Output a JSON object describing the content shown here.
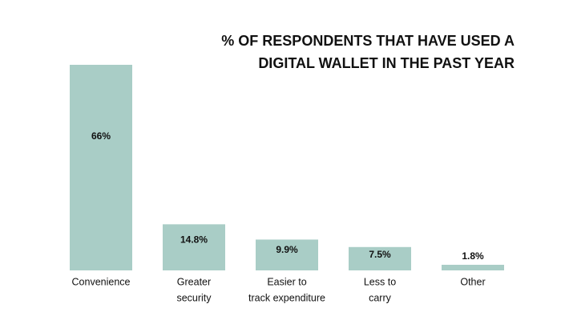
{
  "chart_data": {
    "type": "bar",
    "title": [
      "% OF RESPONDENTS THAT HAVE USED A",
      "DIGITAL WALLET IN THE PAST YEAR"
    ],
    "categories": [
      [
        "Convenience"
      ],
      [
        "Greater",
        "security"
      ],
      [
        "Easier to",
        "track expenditure"
      ],
      [
        "Less to",
        "carry"
      ],
      [
        "Other"
      ]
    ],
    "values": [
      66,
      14.8,
      9.9,
      7.5,
      1.8
    ],
    "value_labels": [
      "66%",
      "14.8%",
      "9.9%",
      "7.5%",
      "1.8%"
    ],
    "color": "#a9cdc6"
  }
}
